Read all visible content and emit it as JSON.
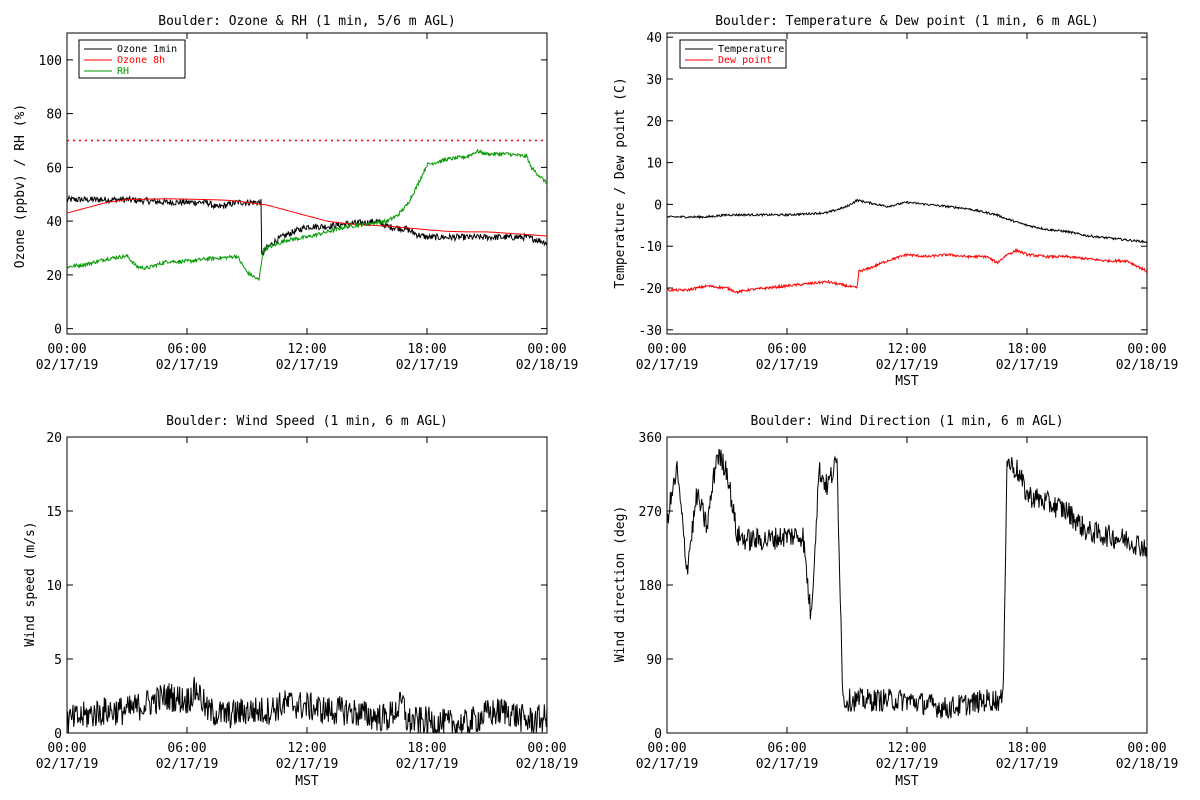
{
  "chart_data": [
    {
      "type": "line",
      "title": "Boulder: Ozone & RH (1 min, 5/6 m AGL)",
      "xlabel": "",
      "ylabel": "Ozone (ppbv) / RH (%)",
      "x_ticks": [
        {
          "hours": 0,
          "time": "00:00",
          "date": "02/17/19"
        },
        {
          "hours": 6,
          "time": "06:00",
          "date": "02/17/19"
        },
        {
          "hours": 12,
          "time": "12:00",
          "date": "02/17/19"
        },
        {
          "hours": 18,
          "time": "18:00",
          "date": "02/17/19"
        },
        {
          "hours": 24,
          "time": "00:00",
          "date": "02/18/19"
        }
      ],
      "xlim": [
        0,
        24
      ],
      "ylim": [
        -2,
        110
      ],
      "yticks": [
        0,
        20,
        40,
        60,
        80,
        100
      ],
      "legend": "top-left",
      "reference_lines": [
        {
          "y": 70,
          "color": "#ff0000",
          "style": "dotted"
        }
      ],
      "series": [
        {
          "name": "Ozone 1min",
          "color": "#000000",
          "noise": 1.2,
          "points": [
            [
              0,
              48
            ],
            [
              1,
              48
            ],
            [
              2,
              48
            ],
            [
              3,
              48
            ],
            [
              4,
              47.5
            ],
            [
              5,
              47
            ],
            [
              6,
              47
            ],
            [
              7,
              47
            ],
            [
              7.5,
              45
            ],
            [
              8,
              46
            ],
            [
              8.5,
              47
            ],
            [
              9,
              47
            ],
            [
              9.7,
              47
            ],
            [
              9.7,
              27
            ],
            [
              10,
              30
            ],
            [
              10.5,
              33
            ],
            [
              11,
              35
            ],
            [
              12,
              38
            ],
            [
              13,
              38
            ],
            [
              14,
              39
            ],
            [
              15,
              39.5
            ],
            [
              15.5,
              40
            ],
            [
              16,
              38
            ],
            [
              17,
              37
            ],
            [
              17.5,
              35
            ],
            [
              18,
              34
            ],
            [
              19,
              34
            ],
            [
              20,
              34
            ],
            [
              21,
              34
            ],
            [
              22,
              34
            ],
            [
              23,
              34
            ],
            [
              24,
              32
            ]
          ]
        },
        {
          "name": "Ozone 8h",
          "color": "#ff0000",
          "noise": 0,
          "points": [
            [
              0,
              43
            ],
            [
              1,
              45
            ],
            [
              2,
              47
            ],
            [
              3,
              48
            ],
            [
              4,
              48.2
            ],
            [
              5,
              48.3
            ],
            [
              6,
              48.2
            ],
            [
              7,
              48
            ],
            [
              8,
              47.8
            ],
            [
              9,
              47
            ],
            [
              10,
              46
            ],
            [
              11,
              44
            ],
            [
              12,
              42
            ],
            [
              13,
              40
            ],
            [
              14,
              39
            ],
            [
              15,
              38.5
            ],
            [
              16,
              38.2
            ],
            [
              17,
              37.5
            ],
            [
              18,
              36.8
            ],
            [
              19,
              36.2
            ],
            [
              20,
              36
            ],
            [
              21,
              36
            ],
            [
              22,
              35.5
            ],
            [
              23,
              35
            ],
            [
              24,
              34.5
            ]
          ]
        },
        {
          "name": "RH",
          "color": "#009900",
          "noise": 0.7,
          "points": [
            [
              0,
              23
            ],
            [
              1,
              24
            ],
            [
              2,
              26
            ],
            [
              3,
              27
            ],
            [
              3.5,
              23
            ],
            [
              4,
              22.5
            ],
            [
              5,
              25
            ],
            [
              6,
              25
            ],
            [
              7,
              26
            ],
            [
              8,
              26.5
            ],
            [
              8.5,
              27
            ],
            [
              9,
              21
            ],
            [
              9.6,
              18
            ],
            [
              9.8,
              29
            ],
            [
              10,
              30
            ],
            [
              11,
              33
            ],
            [
              12,
              34
            ],
            [
              13,
              36
            ],
            [
              14,
              38
            ],
            [
              15,
              39
            ],
            [
              16,
              40
            ],
            [
              16.5,
              42
            ],
            [
              17,
              46
            ],
            [
              17.5,
              53
            ],
            [
              18,
              61
            ],
            [
              19,
              63
            ],
            [
              20,
              64
            ],
            [
              20.5,
              66
            ],
            [
              21,
              65
            ],
            [
              22,
              65
            ],
            [
              23,
              64
            ],
            [
              23.2,
              60
            ],
            [
              24,
              54
            ]
          ]
        }
      ]
    },
    {
      "type": "line",
      "title": "Boulder: Temperature & Dew point (1 min, 6 m AGL)",
      "xlabel": "MST",
      "ylabel": "Temperature / Dew point (C)",
      "x_ticks": [
        {
          "hours": 0,
          "time": "00:00",
          "date": "02/17/19"
        },
        {
          "hours": 6,
          "time": "06:00",
          "date": "02/17/19"
        },
        {
          "hours": 12,
          "time": "12:00",
          "date": "02/17/19"
        },
        {
          "hours": 18,
          "time": "18:00",
          "date": "02/17/19"
        },
        {
          "hours": 24,
          "time": "00:00",
          "date": "02/18/19"
        }
      ],
      "xlim": [
        0,
        24
      ],
      "ylim": [
        -31,
        41
      ],
      "yticks": [
        -30,
        -20,
        -10,
        0,
        10,
        20,
        30,
        40
      ],
      "legend": "top-left",
      "series": [
        {
          "name": "Temperature",
          "color": "#000000",
          "noise": 0.25,
          "points": [
            [
              0,
              -3
            ],
            [
              2,
              -3
            ],
            [
              3,
              -2.5
            ],
            [
              6,
              -2.5
            ],
            [
              8,
              -2
            ],
            [
              9,
              -0.5
            ],
            [
              9.5,
              1
            ],
            [
              10,
              0.5
            ],
            [
              11,
              -0.5
            ],
            [
              12,
              0.5
            ],
            [
              13,
              0
            ],
            [
              14,
              -0.5
            ],
            [
              15,
              -1
            ],
            [
              16,
              -2
            ],
            [
              16.5,
              -2.5
            ],
            [
              17,
              -3.5
            ],
            [
              18,
              -5
            ],
            [
              19,
              -6
            ],
            [
              20,
              -6.5
            ],
            [
              21,
              -7.5
            ],
            [
              22,
              -8
            ],
            [
              23,
              -8.5
            ],
            [
              24,
              -9
            ]
          ]
        },
        {
          "name": "Dew point",
          "color": "#ff0000",
          "noise": 0.3,
          "points": [
            [
              0,
              -20.5
            ],
            [
              1,
              -20.5
            ],
            [
              2,
              -19.5
            ],
            [
              3,
              -20
            ],
            [
              3.5,
              -21
            ],
            [
              4,
              -20.5
            ],
            [
              5,
              -20
            ],
            [
              6,
              -19.5
            ],
            [
              7,
              -19
            ],
            [
              8,
              -18.5
            ],
            [
              9,
              -19.5
            ],
            [
              9.5,
              -20
            ],
            [
              9.6,
              -16
            ],
            [
              10,
              -15.5
            ],
            [
              11,
              -13.5
            ],
            [
              12,
              -12
            ],
            [
              13,
              -12.5
            ],
            [
              14,
              -12
            ],
            [
              15,
              -12.5
            ],
            [
              16,
              -12.5
            ],
            [
              16.5,
              -14
            ],
            [
              17,
              -12
            ],
            [
              17.5,
              -11
            ],
            [
              18,
              -12
            ],
            [
              19,
              -12.5
            ],
            [
              20,
              -12.5
            ],
            [
              21,
              -13
            ],
            [
              22,
              -13.5
            ],
            [
              23,
              -13.5
            ],
            [
              24,
              -16
            ]
          ]
        }
      ]
    },
    {
      "type": "line",
      "title": "Boulder: Wind Speed (1 min, 6 m AGL)",
      "xlabel": "MST",
      "ylabel": "Wind speed (m/s)",
      "x_ticks": [
        {
          "hours": 0,
          "time": "00:00",
          "date": "02/17/19"
        },
        {
          "hours": 6,
          "time": "06:00",
          "date": "02/17/19"
        },
        {
          "hours": 12,
          "time": "12:00",
          "date": "02/17/19"
        },
        {
          "hours": 18,
          "time": "18:00",
          "date": "02/17/19"
        },
        {
          "hours": 24,
          "time": "00:00",
          "date": "02/18/19"
        }
      ],
      "xlim": [
        0,
        24
      ],
      "ylim": [
        0,
        20
      ],
      "yticks": [
        0,
        5,
        10,
        15,
        20
      ],
      "series": [
        {
          "name": "",
          "color": "#000000",
          "noise": 1.0,
          "floor": 0,
          "points": [
            [
              0,
              0.8
            ],
            [
              1,
              1.2
            ],
            [
              2,
              1.5
            ],
            [
              3,
              1.5
            ],
            [
              4,
              2.0
            ],
            [
              5,
              2.5
            ],
            [
              6,
              2.2
            ],
            [
              6.5,
              3.0
            ],
            [
              7,
              1.5
            ],
            [
              8,
              1.2
            ],
            [
              9,
              1.5
            ],
            [
              10,
              1.5
            ],
            [
              11,
              2.0
            ],
            [
              12,
              1.8
            ],
            [
              13,
              1.5
            ],
            [
              14,
              1.5
            ],
            [
              15,
              1.2
            ],
            [
              16,
              1.0
            ],
            [
              16.8,
              2.0
            ],
            [
              17,
              0.8
            ],
            [
              18,
              0.8
            ],
            [
              19,
              0.6
            ],
            [
              20,
              0.6
            ],
            [
              21,
              1.3
            ],
            [
              22,
              1.5
            ],
            [
              23,
              0.8
            ],
            [
              24,
              1.0
            ]
          ]
        }
      ]
    },
    {
      "type": "line",
      "title": "Boulder: Wind Direction (1 min, 6 m AGL)",
      "xlabel": "MST",
      "ylabel": "Wind direction (deg)",
      "x_ticks": [
        {
          "hours": 0,
          "time": "00:00",
          "date": "02/17/19"
        },
        {
          "hours": 6,
          "time": "06:00",
          "date": "02/17/19"
        },
        {
          "hours": 12,
          "time": "12:00",
          "date": "02/17/19"
        },
        {
          "hours": 18,
          "time": "18:00",
          "date": "02/17/19"
        },
        {
          "hours": 24,
          "time": "00:00",
          "date": "02/18/19"
        }
      ],
      "xlim": [
        0,
        24
      ],
      "ylim": [
        0,
        360
      ],
      "yticks": [
        0,
        90,
        180,
        270,
        360
      ],
      "series": [
        {
          "name": "",
          "color": "#000000",
          "noise": 14,
          "floor": 0,
          "ceil": 360,
          "points": [
            [
              0,
              260
            ],
            [
              0.5,
              320
            ],
            [
              1,
              200
            ],
            [
              1.5,
              290
            ],
            [
              2,
              250
            ],
            [
              2.5,
              340
            ],
            [
              3,
              320
            ],
            [
              3.5,
              240
            ],
            [
              4,
              235
            ],
            [
              5,
              235
            ],
            [
              6,
              240
            ],
            [
              6.8,
              240
            ],
            [
              7.2,
              140
            ],
            [
              7.6,
              320
            ],
            [
              8,
              300
            ],
            [
              8.5,
              330
            ],
            [
              8.8,
              40
            ],
            [
              10,
              40
            ],
            [
              11,
              40
            ],
            [
              12,
              40
            ],
            [
              13,
              35
            ],
            [
              14,
              30
            ],
            [
              15,
              35
            ],
            [
              16,
              40
            ],
            [
              16.8,
              40
            ],
            [
              17,
              330
            ],
            [
              17.5,
              320
            ],
            [
              18,
              290
            ],
            [
              19,
              280
            ],
            [
              20,
              270
            ],
            [
              21,
              245
            ],
            [
              22,
              240
            ],
            [
              23,
              235
            ],
            [
              24,
              225
            ]
          ]
        }
      ]
    }
  ]
}
